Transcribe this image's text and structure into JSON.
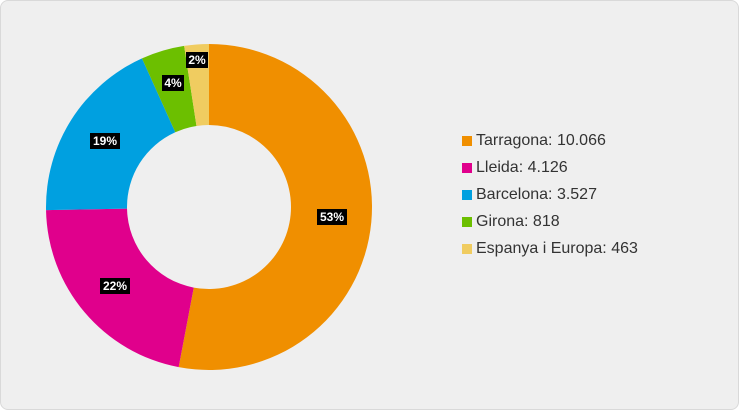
{
  "chart_data": {
    "type": "pie",
    "style": "donut",
    "categories": [
      "Tarragona",
      "Lleida",
      "Barcelona",
      "Girona",
      "Espanya i Europa"
    ],
    "values": [
      10066,
      4126,
      3527,
      818,
      463
    ],
    "display_values": [
      "10.066",
      "4.126",
      "3.527",
      "818",
      "463"
    ],
    "percent_labels": [
      "53%",
      "22%",
      "19%",
      "4%",
      "2%"
    ],
    "colors": [
      "#f08f00",
      "#e0008c",
      "#00a0e0",
      "#6cbf00",
      "#f0cc60"
    ],
    "legend_position": "right"
  }
}
